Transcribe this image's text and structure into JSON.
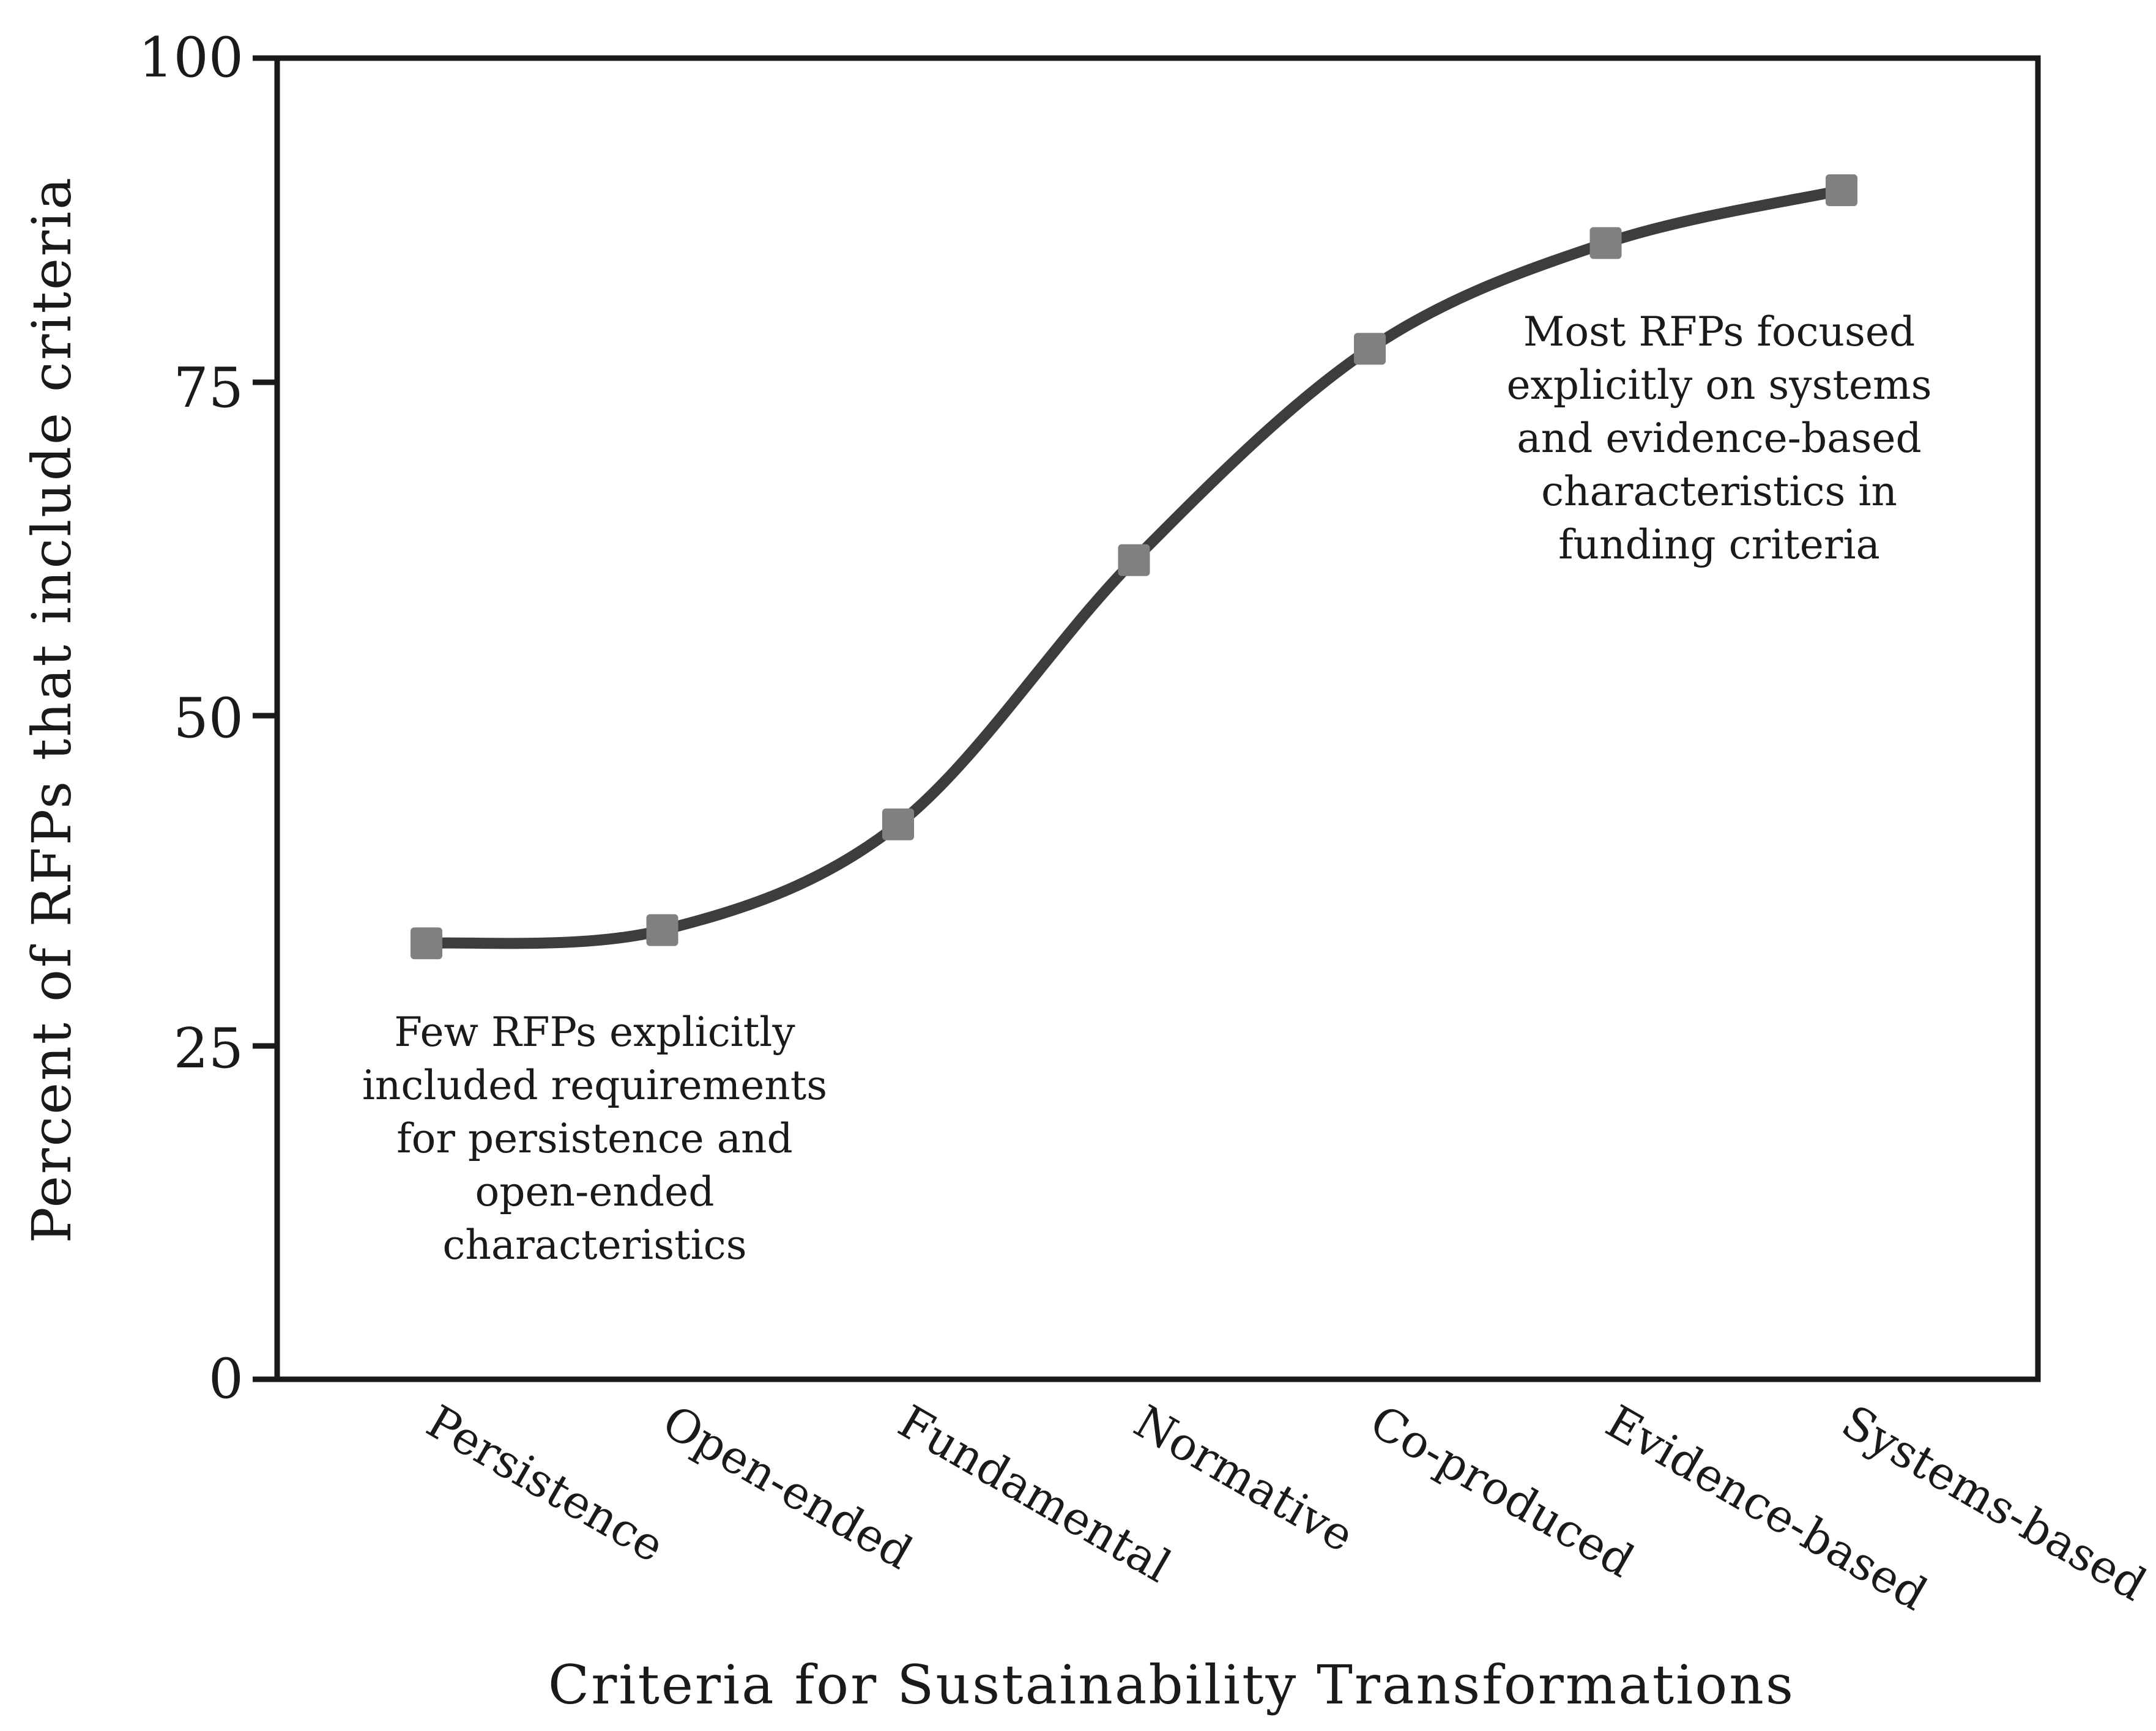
{
  "chart_data": {
    "type": "line",
    "title": "",
    "xlabel": "Criteria for Sustainability Transformations",
    "ylabel": "Percent of RFPs that include criteria",
    "categories": [
      "Persistence",
      "Open-ended",
      "Fundamental",
      "Normative",
      "Co-produced",
      "Evidence-based",
      "Systems-based"
    ],
    "series": [
      {
        "name": "Percent of RFPs",
        "values": [
          33,
          34,
          42,
          62,
          78,
          86,
          90
        ]
      }
    ],
    "ylim": [
      0,
      100
    ],
    "yticks": [
      0,
      25,
      50,
      75,
      100
    ],
    "grid": false,
    "line_smooth": true,
    "colors": {
      "line": "#3d3d3d",
      "marker": "#808080",
      "axis": "#1a1a1a"
    },
    "annotations": [
      {
        "id": "low",
        "lines": [
          "Few RFPs explicitly",
          "included requirements",
          "for persistence and",
          "open-ended",
          "characteristics"
        ]
      },
      {
        "id": "high",
        "lines": [
          "Most RFPs focused",
          "explicitly on systems",
          "and evidence-based",
          "characteristics in",
          "funding criteria"
        ]
      }
    ]
  }
}
